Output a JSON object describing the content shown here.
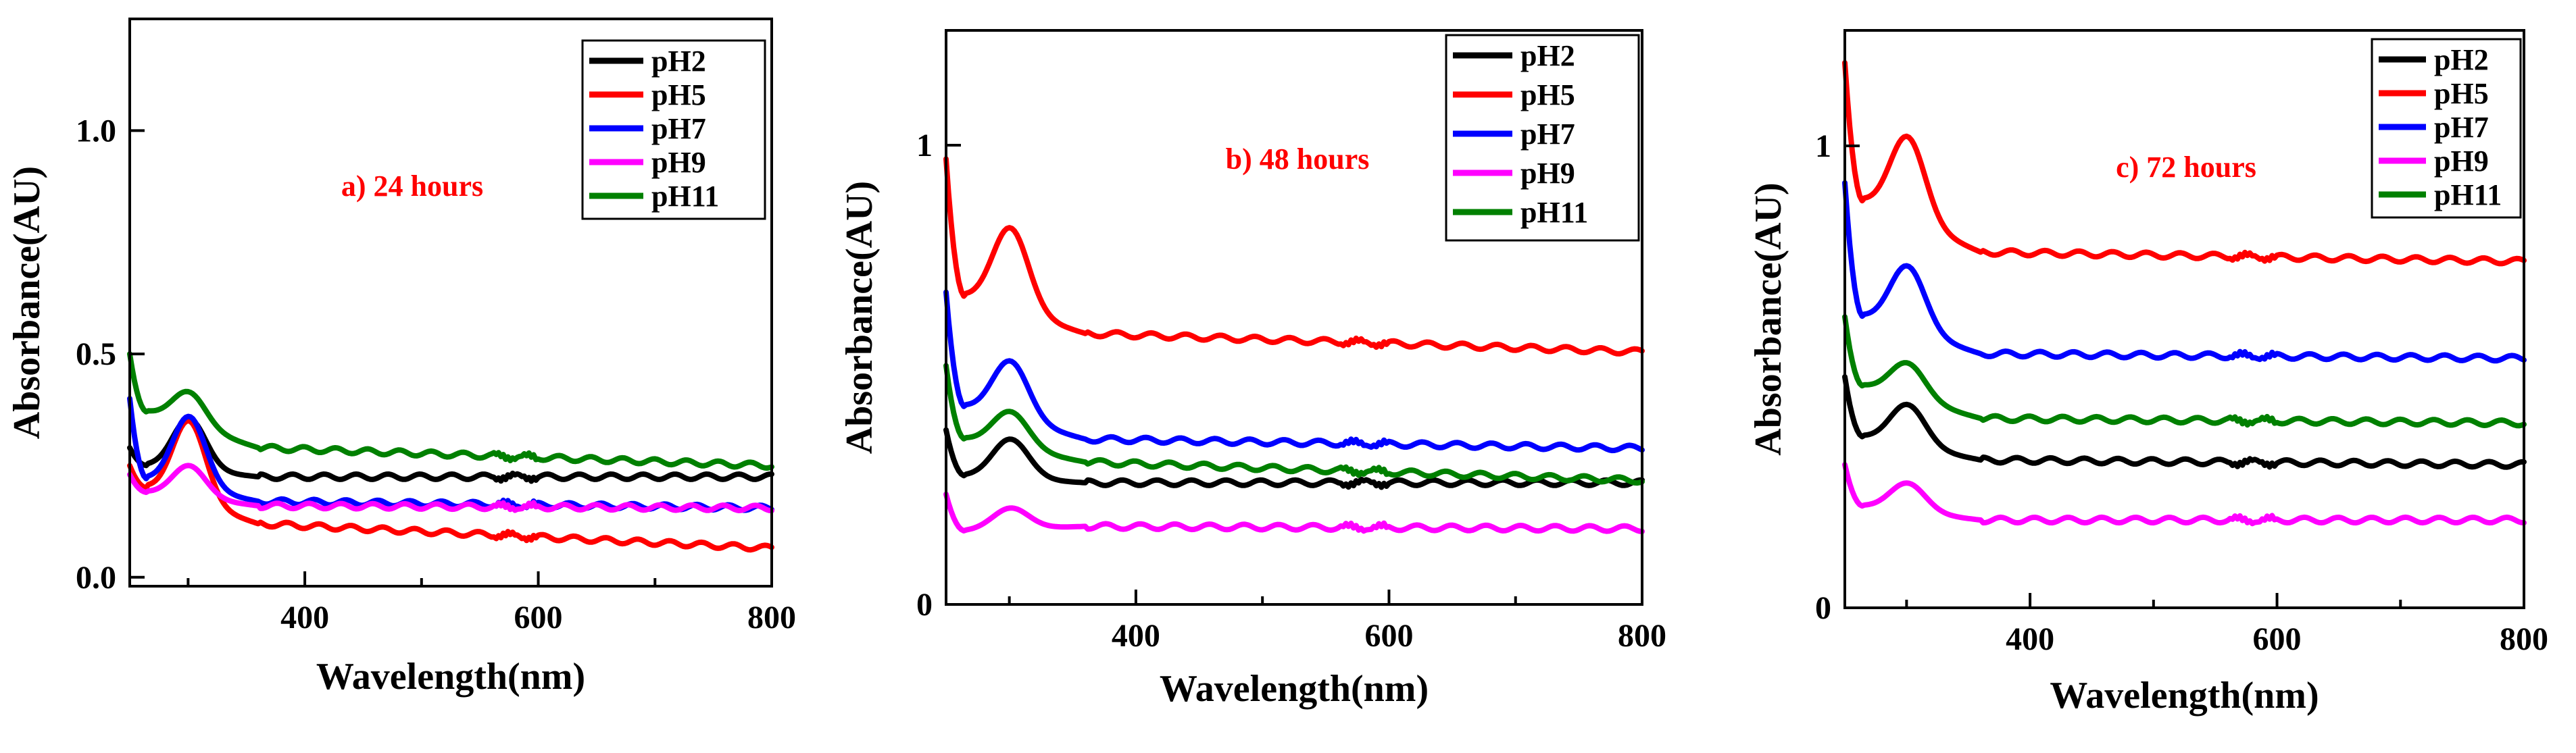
{
  "chart_data": [
    {
      "type": "line",
      "annotation": "a) 24 hours",
      "xlabel": "Wavelength(nm)",
      "ylabel": "Absorbance(AU)",
      "xlim": [
        250,
        800
      ],
      "ylim": [
        -0.02,
        1.25
      ],
      "xticks": [
        400,
        600,
        800
      ],
      "xtick_labels": [
        "400",
        "600",
        "800"
      ],
      "yticks": [
        0.0,
        0.5,
        1.0
      ],
      "ytick_labels": [
        "0.0",
        "0.5",
        "1.0"
      ],
      "legend_position": "top-right",
      "series": [
        {
          "name": "pH2",
          "color": "#000000",
          "start": 0.29,
          "dip": 0.25,
          "peak": 0.355,
          "flat": 0.225,
          "end": 0.225
        },
        {
          "name": "pH5",
          "color": "#ff0000",
          "start": 0.25,
          "dip": 0.2,
          "peak": 0.35,
          "flat": 0.12,
          "end": 0.065
        },
        {
          "name": "pH7",
          "color": "#0000ff",
          "start": 0.4,
          "dip": 0.22,
          "peak": 0.36,
          "flat": 0.17,
          "end": 0.155
        },
        {
          "name": "pH9",
          "color": "#ff00ff",
          "start": 0.23,
          "dip": 0.19,
          "peak": 0.25,
          "flat": 0.16,
          "end": 0.155
        },
        {
          "name": "pH11",
          "color": "#008000",
          "start": 0.5,
          "dip": 0.37,
          "peak": 0.415,
          "flat": 0.29,
          "end": 0.25
        }
      ]
    },
    {
      "type": "line",
      "annotation": "b) 48 hours",
      "xlabel": "Wavelength(nm)",
      "ylabel": "Absorbance(AU)",
      "xlim": [
        250,
        800
      ],
      "ylim": [
        0.0,
        1.25
      ],
      "xticks": [
        400,
        600,
        800
      ],
      "xtick_labels": [
        "400",
        "600",
        "800"
      ],
      "yticks": [
        0,
        1
      ],
      "ytick_labels": [
        "0",
        "1"
      ],
      "legend_position": "top-right",
      "series": [
        {
          "name": "pH2",
          "color": "#000000",
          "start": 0.38,
          "dip": 0.28,
          "peak": 0.36,
          "flat": 0.265,
          "end": 0.265
        },
        {
          "name": "pH5",
          "color": "#ff0000",
          "start": 0.97,
          "dip": 0.67,
          "peak": 0.82,
          "flat": 0.59,
          "end": 0.55
        },
        {
          "name": "pH7",
          "color": "#0000ff",
          "start": 0.68,
          "dip": 0.43,
          "peak": 0.53,
          "flat": 0.36,
          "end": 0.34
        },
        {
          "name": "pH9",
          "color": "#ff00ff",
          "start": 0.24,
          "dip": 0.16,
          "peak": 0.21,
          "flat": 0.17,
          "end": 0.165
        },
        {
          "name": "pH11",
          "color": "#008000",
          "start": 0.52,
          "dip": 0.36,
          "peak": 0.42,
          "flat": 0.31,
          "end": 0.27
        }
      ]
    },
    {
      "type": "line",
      "annotation": "c) 72 hours",
      "xlabel": "Wavelength(nm)",
      "ylabel": "Absorbance(AU)",
      "xlim": [
        250,
        800
      ],
      "ylim": [
        0.0,
        1.25
      ],
      "xticks": [
        400,
        600,
        800
      ],
      "xtick_labels": [
        "400",
        "600",
        "800"
      ],
      "yticks": [
        0,
        1
      ],
      "ytick_labels": [
        "0",
        "1"
      ],
      "legend_position": "top-right",
      "series": [
        {
          "name": "pH2",
          "color": "#000000",
          "start": 0.5,
          "dip": 0.37,
          "peak": 0.44,
          "flat": 0.32,
          "end": 0.31
        },
        {
          "name": "pH5",
          "color": "#ff0000",
          "start": 1.18,
          "dip": 0.88,
          "peak": 1.02,
          "flat": 0.77,
          "end": 0.75
        },
        {
          "name": "pH7",
          "color": "#0000ff",
          "start": 0.92,
          "dip": 0.63,
          "peak": 0.74,
          "flat": 0.55,
          "end": 0.54
        },
        {
          "name": "pH9",
          "color": "#ff00ff",
          "start": 0.31,
          "dip": 0.22,
          "peak": 0.27,
          "flat": 0.19,
          "end": 0.19
        },
        {
          "name": "pH11",
          "color": "#008000",
          "start": 0.63,
          "dip": 0.48,
          "peak": 0.53,
          "flat": 0.41,
          "end": 0.4
        }
      ]
    }
  ]
}
